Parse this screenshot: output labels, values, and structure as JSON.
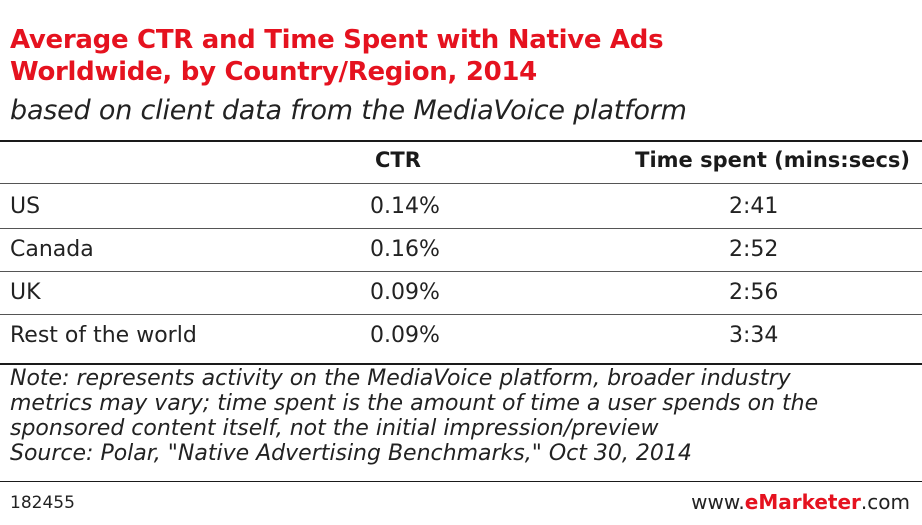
{
  "title_line1": "Average CTR and Time Spent with Native Ads",
  "title_line2": "Worldwide, by Country/Region, 2014",
  "subtitle": "based on client data from the MediaVoice platform",
  "chart_data": {
    "type": "table",
    "columns": [
      "",
      "CTR",
      "Time spent (mins:secs)"
    ],
    "rows": [
      {
        "label": "US",
        "ctr": "0.14%",
        "time": "2:41"
      },
      {
        "label": "Canada",
        "ctr": "0.16%",
        "time": "2:52"
      },
      {
        "label": "UK",
        "ctr": "0.09%",
        "time": "2:56"
      },
      {
        "label": "Rest of the world",
        "ctr": "0.09%",
        "time": "3:34"
      }
    ]
  },
  "notes": {
    "line1": "Note: represents activity on the MediaVoice platform, broader industry",
    "line2": "metrics may vary; time spent is the amount of time a user spends on the",
    "line3": "sponsored content itself, not the initial impression/preview",
    "line4": "Source: Polar, \"Native Advertising Benchmarks,\" Oct 30, 2014"
  },
  "footer": {
    "id": "182455",
    "brand_prefix": "www.",
    "brand_name": "eMarketer",
    "brand_suffix": ".com"
  },
  "colors": {
    "title": "#e5121f",
    "text": "#222222",
    "rule": "#1a1a1a"
  }
}
